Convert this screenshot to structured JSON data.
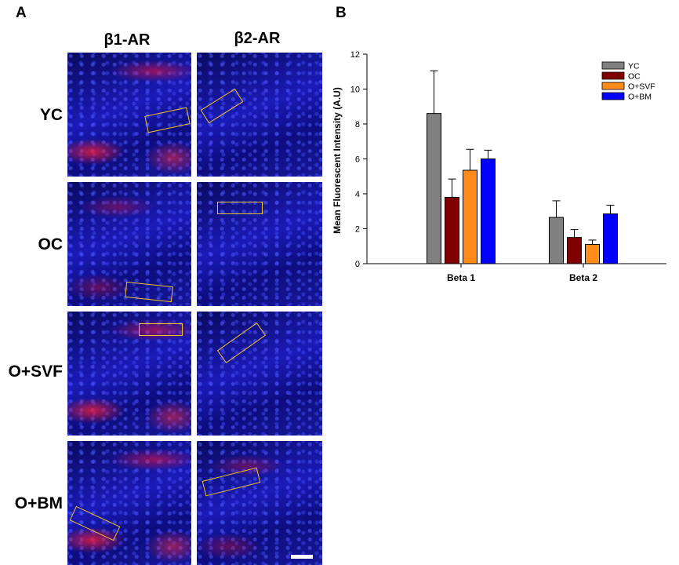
{
  "panel_a": {
    "letter": "A",
    "column_headers": [
      "β1-AR",
      "β2-AR"
    ],
    "row_labels": [
      "YC",
      "OC",
      "O+SVF",
      "O+BM"
    ]
  },
  "panel_b": {
    "letter": "B"
  },
  "chart_data": {
    "type": "bar",
    "title": "",
    "xlabel": "",
    "ylabel": "Mean Fluorescent Intensity (A.U)",
    "categories": [
      "Beta 1",
      "Beta 2"
    ],
    "ylim": [
      0,
      12
    ],
    "yticks": [
      0,
      2,
      4,
      6,
      8,
      10,
      12
    ],
    "error_bars": "upper",
    "legend_position": "top-right",
    "series": [
      {
        "name": "YC",
        "color": "#808080",
        "values": [
          8.6,
          2.65
        ],
        "errors": [
          2.45,
          0.95
        ]
      },
      {
        "name": "OC",
        "color": "#7f0000",
        "values": [
          3.8,
          1.5
        ],
        "errors": [
          1.05,
          0.45
        ]
      },
      {
        "name": "O+SVF",
        "color": "#ff8c1a",
        "values": [
          5.35,
          1.1
        ],
        "errors": [
          1.2,
          0.25
        ]
      },
      {
        "name": "O+BM",
        "color": "#0000ff",
        "values": [
          6.0,
          2.85
        ],
        "errors": [
          0.5,
          0.5
        ]
      }
    ]
  }
}
